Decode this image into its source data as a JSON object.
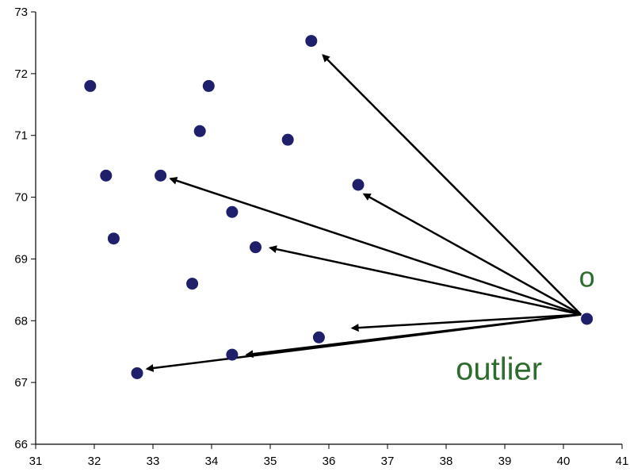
{
  "chart_data": {
    "type": "scatter",
    "title": "",
    "xlabel": "",
    "ylabel": "",
    "xlim": [
      31,
      41
    ],
    "ylim": [
      66,
      73
    ],
    "xticks": [
      "31",
      "32",
      "33",
      "34",
      "35",
      "36",
      "37",
      "38",
      "39",
      "40",
      "41"
    ],
    "yticks": [
      "66",
      "67",
      "68",
      "69",
      "70",
      "71",
      "72",
      "73"
    ],
    "grid": false,
    "series": [
      {
        "color": "#1f1f6b",
        "points": [
          {
            "x": 31.93,
            "y": 71.8
          },
          {
            "x": 32.2,
            "y": 70.35
          },
          {
            "x": 32.33,
            "y": 69.33
          },
          {
            "x": 32.73,
            "y": 67.15
          },
          {
            "x": 33.13,
            "y": 70.35
          },
          {
            "x": 33.67,
            "y": 68.6
          },
          {
            "x": 33.8,
            "y": 71.07
          },
          {
            "x": 33.95,
            "y": 71.8
          },
          {
            "x": 34.35,
            "y": 69.76
          },
          {
            "x": 34.35,
            "y": 67.45
          },
          {
            "x": 34.75,
            "y": 69.19
          },
          {
            "x": 35.3,
            "y": 70.93
          },
          {
            "x": 35.7,
            "y": 72.53
          },
          {
            "x": 35.83,
            "y": 67.73
          },
          {
            "x": 36.5,
            "y": 70.2
          },
          {
            "x": 40.4,
            "y": 68.03
          }
        ]
      }
    ],
    "arrows": [
      {
        "from": [
          40.3,
          68.1
        ],
        "to": [
          35.9,
          72.3
        ]
      },
      {
        "from": [
          40.3,
          68.1
        ],
        "to": [
          33.3,
          70.3
        ]
      },
      {
        "from": [
          40.3,
          68.1
        ],
        "to": [
          36.6,
          70.05
        ]
      },
      {
        "from": [
          40.3,
          68.1
        ],
        "to": [
          35.0,
          69.18
        ]
      },
      {
        "from": [
          40.3,
          68.1
        ],
        "to": [
          36.4,
          67.88
        ]
      },
      {
        "from": [
          40.3,
          68.1
        ],
        "to": [
          34.6,
          67.45
        ]
      },
      {
        "from": [
          40.3,
          68.1
        ],
        "to": [
          32.9,
          67.22
        ]
      }
    ],
    "annotations": [
      {
        "text": "o",
        "x": 40.4,
        "y": 68.55,
        "color": "#2e6b2e"
      },
      {
        "text": "outlier",
        "x": 38.9,
        "y": 67.05,
        "color": "#2e6b2e"
      }
    ]
  }
}
